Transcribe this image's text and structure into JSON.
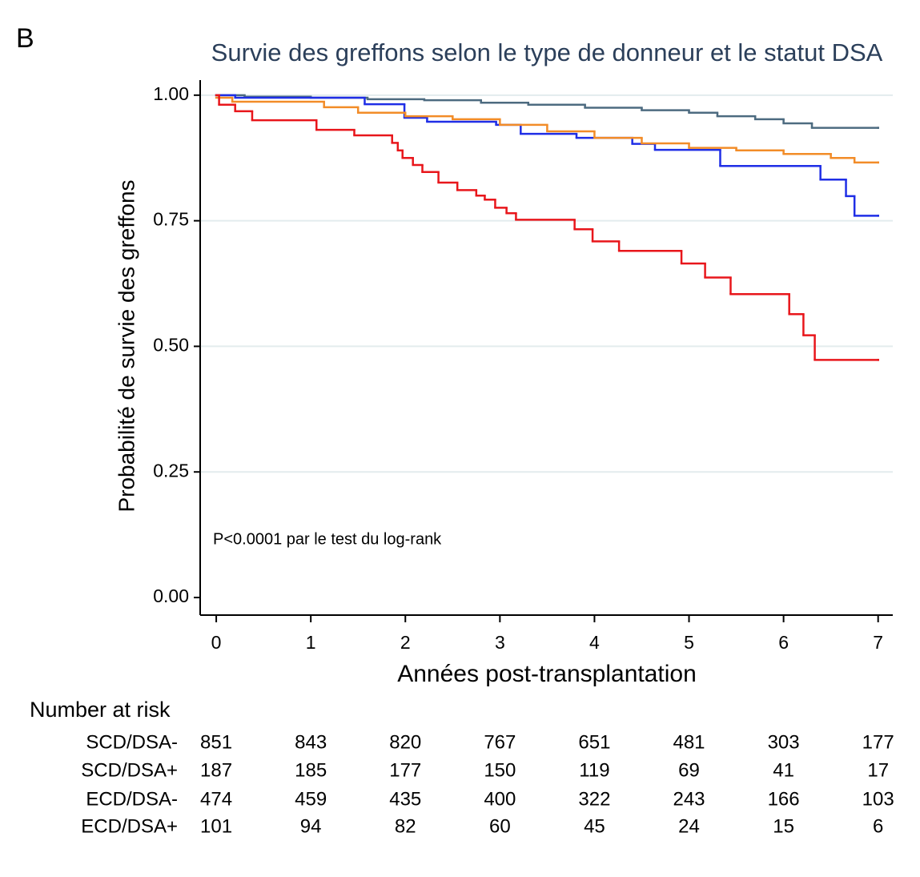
{
  "chart_data": {
    "type": "step",
    "panel_label": "B",
    "title": "Survie des greffons selon le type de donneur et le statut DSA",
    "y_label": "Probabilité de survie des greffons",
    "x_label": "Années post-transplantation",
    "annotation": "P<0.0001 par le test du log-rank",
    "risk_table_title": "Number at risk",
    "xlim": [
      -0.17,
      7.155
    ],
    "ylim": [
      -0.035,
      1.03
    ],
    "xticks": [
      0,
      1,
      2,
      3,
      4,
      5,
      6,
      7
    ],
    "yticks": [
      {
        "value": 0,
        "label": "0.00"
      },
      {
        "value": 0.25,
        "label": "0.25"
      },
      {
        "value": 0.5,
        "label": "0.50"
      },
      {
        "value": 0.75,
        "label": "0.75"
      },
      {
        "value": 1,
        "label": "1.00"
      }
    ],
    "grid": true,
    "series": [
      {
        "name": "SCD/DSA-",
        "color": "#4d6b80",
        "x": [
          0,
          0.3,
          1.0,
          1.6,
          2.2,
          2.8,
          3.3,
          3.9,
          4.5,
          5.0,
          5.3,
          5.7,
          6.0,
          6.3,
          7.0
        ],
        "values": [
          1.0,
          0.997,
          0.995,
          0.992,
          0.99,
          0.985,
          0.981,
          0.975,
          0.97,
          0.965,
          0.958,
          0.952,
          0.944,
          0.935,
          0.935
        ],
        "at_risk": [
          851,
          843,
          820,
          767,
          651,
          481,
          303,
          177
        ]
      },
      {
        "name": "SCD/DSA+",
        "color": "#1f2ee6",
        "x": [
          0,
          0.2,
          1.57,
          1.99,
          2.23,
          2.96,
          3.22,
          3.81,
          4.4,
          4.64,
          5.33,
          6.39,
          6.66,
          6.75,
          7.0
        ],
        "values": [
          1.0,
          0.995,
          0.982,
          0.955,
          0.947,
          0.941,
          0.923,
          0.915,
          0.903,
          0.891,
          0.859,
          0.832,
          0.799,
          0.76,
          0.76
        ],
        "at_risk": [
          187,
          185,
          177,
          150,
          119,
          69,
          41,
          17
        ]
      },
      {
        "name": "ECD/DSA-",
        "color": "#f28c28",
        "x": [
          0,
          0.17,
          1.14,
          1.5,
          2.0,
          2.5,
          3.0,
          3.5,
          4.0,
          4.5,
          5.0,
          5.5,
          6.0,
          6.5,
          6.75,
          7.0
        ],
        "values": [
          0.995,
          0.987,
          0.976,
          0.965,
          0.958,
          0.952,
          0.941,
          0.928,
          0.915,
          0.904,
          0.895,
          0.89,
          0.883,
          0.875,
          0.866,
          0.866
        ],
        "at_risk": [
          474,
          459,
          435,
          400,
          322,
          243,
          166,
          103
        ]
      },
      {
        "name": "ECD/DSA+",
        "color": "#e8161b",
        "x": [
          0,
          0.03,
          0.2,
          0.38,
          1.06,
          1.46,
          1.86,
          1.92,
          1.97,
          2.08,
          2.18,
          2.35,
          2.55,
          2.75,
          2.84,
          2.95,
          3.07,
          3.17,
          3.79,
          3.98,
          4.26,
          4.92,
          5.17,
          5.44,
          6.06,
          6.21,
          6.33,
          7.0
        ],
        "values": [
          1.0,
          0.981,
          0.968,
          0.95,
          0.931,
          0.92,
          0.905,
          0.89,
          0.875,
          0.861,
          0.847,
          0.826,
          0.811,
          0.8,
          0.792,
          0.776,
          0.765,
          0.752,
          0.733,
          0.709,
          0.69,
          0.665,
          0.637,
          0.604,
          0.564,
          0.522,
          0.473,
          0.473
        ],
        "at_risk": [
          101,
          94,
          82,
          60,
          45,
          24,
          15,
          6
        ]
      }
    ]
  }
}
